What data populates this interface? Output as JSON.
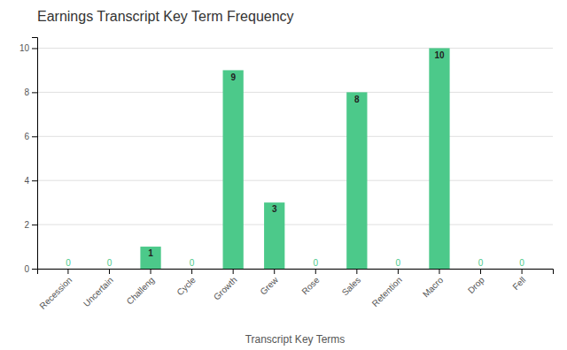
{
  "chart_data": {
    "type": "bar",
    "title": "Earnings Transcript Key Term Frequency",
    "xlabel": "Transcript Key Terms",
    "categories": [
      "Recession",
      "Uncertain",
      "Challeng",
      "Cycle",
      "Growth",
      "Grew",
      "Rose",
      "Sales",
      "Retention",
      "Macro",
      "Drop",
      "Fell"
    ],
    "values": [
      0,
      0,
      1,
      0,
      9,
      3,
      0,
      8,
      0,
      10,
      0,
      0
    ],
    "color": "#4CC98A",
    "ylim": [
      0,
      10.5
    ],
    "yticks": [
      0,
      2,
      4,
      6,
      8,
      10
    ],
    "grid": true,
    "data_labels": true
  }
}
